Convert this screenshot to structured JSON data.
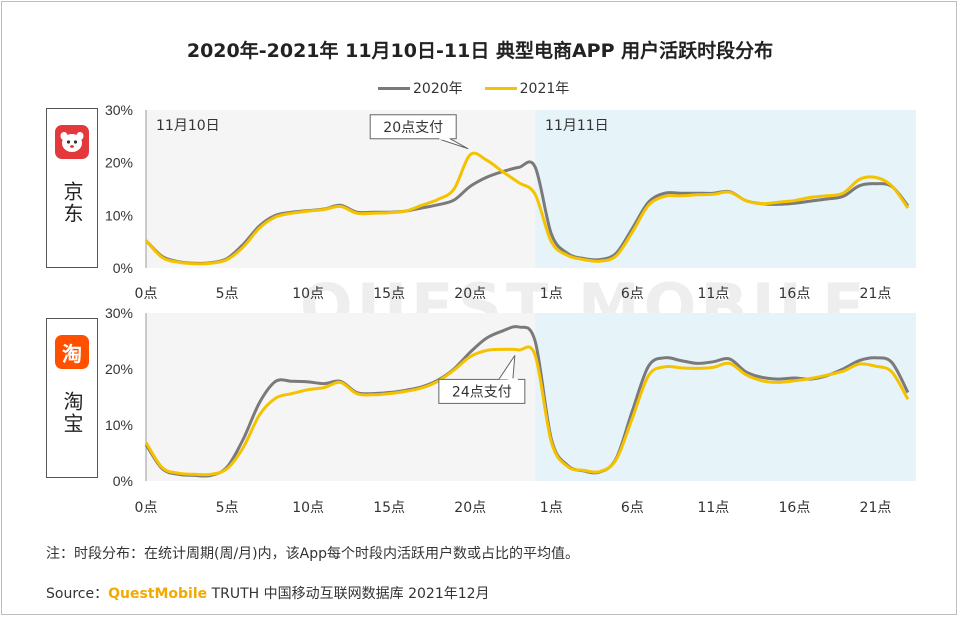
{
  "title": "2020年-2021年 11月10日-11日 典型电商APP 用户活跃时段分布",
  "legend": {
    "s2020": "2020年",
    "s2021": "2021年"
  },
  "colors": {
    "s2020": "#7a7a7a",
    "s2021": "#f5c200",
    "day1_bg": "#f5f5f5",
    "day2_bg": "#e6f3f9",
    "jd_logo": "#e4393c",
    "taobao_logo": "#ff5000"
  },
  "rows": {
    "jd": {
      "name": "京东",
      "logo_icon": "jd-dog-logo"
    },
    "taobao": {
      "name": "淘宝",
      "logo_text": "淘"
    }
  },
  "note": "注：时段分布：在统计周期(周/月)内，该App每个时段内活跃用户数或占比的平均值。",
  "source": {
    "prefix": "Source：",
    "brand": "QuestMobile",
    "rest": " TRUTH 中国移动互联网数据库 2021年12月"
  },
  "watermark": "QUEST MOBILE",
  "chart_data": [
    {
      "type": "line",
      "panel": "京东",
      "x_tick_labels": [
        "0点",
        "5点",
        "10点",
        "15点",
        "20点",
        "1点",
        "6点",
        "11点",
        "16点",
        "21点"
      ],
      "x_tick_positions": [
        0,
        5,
        10,
        15,
        20,
        25,
        30,
        35,
        40,
        45
      ],
      "day_labels": [
        "11月10日",
        "11月11日"
      ],
      "day_split_x": 24,
      "ylim": [
        0,
        30
      ],
      "y_tick_labels": [
        "0%",
        "10%",
        "20%",
        "30%"
      ],
      "annotation": {
        "text": "20点支付",
        "x": 20,
        "y": 21.5
      },
      "x": [
        0,
        1,
        2,
        3,
        4,
        5,
        6,
        7,
        8,
        9,
        10,
        11,
        12,
        13,
        14,
        15,
        16,
        17,
        18,
        19,
        20,
        21,
        22,
        23,
        24,
        25,
        26,
        27,
        28,
        29,
        30,
        31,
        32,
        33,
        34,
        35,
        36,
        37,
        38,
        39,
        40,
        41,
        42,
        43,
        44,
        45,
        46,
        47
      ],
      "series": [
        {
          "name": "2020年",
          "values": [
            5.2,
            2.2,
            1.2,
            0.9,
            1.0,
            1.8,
            4.5,
            8.0,
            10.0,
            10.6,
            10.9,
            11.2,
            11.9,
            10.6,
            10.6,
            10.6,
            10.8,
            11.4,
            12.0,
            12.9,
            15.5,
            17.2,
            18.3,
            19.1,
            19.2,
            6.5,
            2.8,
            1.8,
            1.6,
            2.8,
            7.5,
            12.5,
            14.2,
            14.2,
            14.2,
            14.2,
            14.5,
            12.8,
            12.2,
            12.1,
            12.3,
            12.7,
            13.1,
            13.6,
            15.6,
            16.0,
            15.5,
            11.8
          ]
        },
        {
          "name": "2021年",
          "values": [
            5.2,
            2.0,
            1.1,
            0.8,
            0.9,
            1.6,
            4.0,
            7.6,
            9.7,
            10.4,
            10.8,
            11.1,
            11.7,
            10.4,
            10.4,
            10.5,
            10.8,
            11.9,
            13.0,
            15.0,
            21.5,
            20.5,
            18.3,
            16.2,
            14.0,
            5.0,
            2.4,
            1.6,
            1.3,
            2.3,
            6.8,
            11.9,
            13.6,
            13.7,
            13.9,
            14.0,
            14.4,
            12.8,
            12.2,
            12.5,
            12.8,
            13.4,
            13.7,
            14.2,
            16.8,
            17.2,
            15.6,
            11.4
          ]
        }
      ]
    },
    {
      "type": "line",
      "panel": "淘宝",
      "x_tick_labels": [
        "0点",
        "5点",
        "10点",
        "15点",
        "20点",
        "1点",
        "6点",
        "11点",
        "16点",
        "21点"
      ],
      "x_tick_positions": [
        0,
        5,
        10,
        15,
        20,
        25,
        30,
        35,
        40,
        45
      ],
      "day_split_x": 24,
      "ylim": [
        0,
        30
      ],
      "y_tick_labels": [
        "0%",
        "10%",
        "20%",
        "30%"
      ],
      "annotation": {
        "text": "24点支付",
        "x": 23,
        "y": 23.5
      },
      "x": [
        0,
        1,
        2,
        3,
        4,
        5,
        6,
        7,
        8,
        9,
        10,
        11,
        12,
        13,
        14,
        15,
        16,
        17,
        18,
        19,
        20,
        21,
        22,
        23,
        24,
        25,
        26,
        27,
        28,
        29,
        30,
        31,
        32,
        33,
        34,
        35,
        36,
        37,
        38,
        39,
        40,
        41,
        42,
        43,
        44,
        45,
        46,
        47
      ],
      "series": [
        {
          "name": "2020年",
          "values": [
            6.5,
            2.2,
            1.2,
            1.0,
            1.0,
            2.5,
            7.5,
            14.0,
            17.8,
            17.8,
            17.7,
            17.4,
            17.8,
            15.8,
            15.6,
            15.8,
            16.2,
            16.8,
            18.0,
            20.0,
            23.0,
            25.5,
            26.8,
            27.5,
            25.0,
            7.5,
            2.8,
            1.8,
            1.6,
            4.0,
            12.5,
            20.5,
            22.0,
            21.5,
            21.0,
            21.3,
            21.8,
            19.5,
            18.5,
            18.2,
            18.4,
            18.2,
            18.8,
            20.0,
            21.5,
            22.0,
            21.2,
            15.8
          ]
        },
        {
          "name": "2021年",
          "values": [
            6.9,
            2.4,
            1.4,
            1.2,
            1.2,
            2.2,
            6.0,
            11.8,
            14.8,
            15.6,
            16.3,
            16.7,
            17.6,
            15.6,
            15.4,
            15.6,
            16.0,
            16.6,
            17.8,
            19.8,
            22.2,
            23.3,
            23.5,
            23.4,
            22.5,
            7.0,
            2.6,
            1.9,
            1.7,
            3.8,
            11.2,
            18.8,
            20.4,
            20.2,
            20.1,
            20.3,
            21.0,
            19.0,
            17.9,
            17.6,
            17.9,
            18.3,
            18.9,
            19.6,
            20.9,
            20.5,
            19.5,
            14.6
          ]
        }
      ]
    }
  ]
}
